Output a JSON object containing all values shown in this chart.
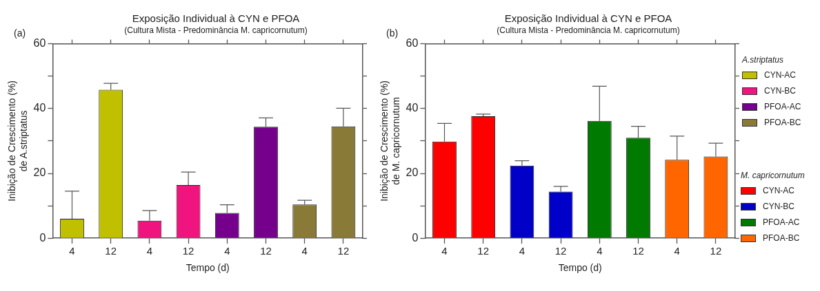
{
  "chart_data": [
    {
      "type": "bar",
      "title": "Exposição Individual à CYN e  PFOA",
      "subtitle": "(Cultura Mista - Predominância M. capricornutum)",
      "xlabel": "Tempo (d)",
      "ylabel": "Inibição de Crescimento (%) de A.striptatus",
      "annotations": [
        "(a)"
      ],
      "legend_title": "A.striptatus",
      "legend": "right",
      "categories": [
        "4",
        "12",
        "4",
        "12",
        "4",
        "12",
        "4",
        "12"
      ],
      "ylim": [
        0,
        60
      ],
      "yticks": [
        0,
        {
          "value": 10,
          "label": null
        },
        20,
        {
          "value": 30,
          "label": null
        },
        40,
        {
          "value": 50,
          "label": null
        },
        60
      ],
      "grid": false,
      "series": [
        {
          "name": "CYN-AC",
          "color": "#c0c000",
          "values": [
            6,
            45.8,
            null,
            null,
            null,
            null,
            null,
            null
          ],
          "errors": [
            [
              6,
              14.5
            ],
            [
              45.8,
              47.8
            ],
            null,
            null,
            null,
            null,
            null,
            null
          ]
        },
        {
          "name": "CYN-BC",
          "color": "#f0147f",
          "values": [
            null,
            null,
            5.4,
            16.4,
            null,
            null,
            null,
            null
          ],
          "errors": [
            null,
            null,
            [
              5.4,
              8.5
            ],
            [
              16.4,
              20.4
            ],
            null,
            null,
            null,
            null
          ]
        },
        {
          "name": "PFOA-AC",
          "color": "#74008c",
          "values": [
            null,
            null,
            null,
            null,
            7.8,
            34.4,
            null,
            null
          ],
          "errors": [
            null,
            null,
            null,
            null,
            [
              7.8,
              10.3
            ],
            [
              34.4,
              37.1
            ],
            null,
            null
          ]
        },
        {
          "name": "PFOA-BC",
          "color": "#8a7a38",
          "values": [
            null,
            null,
            null,
            null,
            null,
            null,
            10.4,
            34.5
          ],
          "errors": [
            null,
            null,
            null,
            null,
            null,
            null,
            [
              10.4,
              11.7
            ],
            [
              34.5,
              40.1
            ]
          ]
        }
      ]
    },
    {
      "type": "bar",
      "title": "Exposição Individual à CYN e  PFOA",
      "subtitle": "(Cultura Mista - Predominância M. capricornutum)",
      "xlabel": "Tempo (d)",
      "ylabel": "Inibição de Crescimento (%) de M. capricornutum",
      "annotations": [
        "(b)"
      ],
      "legend_title": "M. capricornutum",
      "legend": "right",
      "categories": [
        "4",
        "12",
        "4",
        "12",
        "4",
        "12",
        "4",
        "12"
      ],
      "ylim": [
        0,
        60
      ],
      "yticks": [
        0,
        {
          "value": 10,
          "label": null
        },
        20,
        {
          "value": 30,
          "label": null
        },
        40,
        {
          "value": 50,
          "label": null
        },
        60
      ],
      "grid": false,
      "series": [
        {
          "name": "CYN-AC",
          "color": "#ff0000",
          "values": [
            29.8,
            37.6,
            null,
            null,
            null,
            null,
            null,
            null
          ],
          "errors": [
            [
              29.8,
              35.4
            ],
            [
              37.6,
              38.3
            ],
            null,
            null,
            null,
            null,
            null,
            null
          ]
        },
        {
          "name": "CYN-BC",
          "color": "#0000c8",
          "values": [
            null,
            null,
            22.4,
            14.4,
            null,
            null,
            null,
            null
          ],
          "errors": [
            null,
            null,
            [
              22.4,
              23.9
            ],
            [
              14.4,
              16.0
            ],
            null,
            null,
            null,
            null
          ]
        },
        {
          "name": "PFOA-AC",
          "color": "#007a00",
          "values": [
            null,
            null,
            null,
            null,
            36.2,
            31.0,
            null,
            null
          ],
          "errors": [
            null,
            null,
            null,
            null,
            [
              36.2,
              46.9
            ],
            [
              31.0,
              34.5
            ],
            null,
            null
          ]
        },
        {
          "name": "PFOA-BC",
          "color": "#ff6600",
          "values": [
            null,
            null,
            null,
            null,
            null,
            null,
            24.2,
            25.2
          ],
          "errors": [
            null,
            null,
            null,
            null,
            null,
            null,
            [
              24.2,
              31.5
            ],
            [
              25.2,
              29.3
            ]
          ]
        }
      ]
    }
  ]
}
